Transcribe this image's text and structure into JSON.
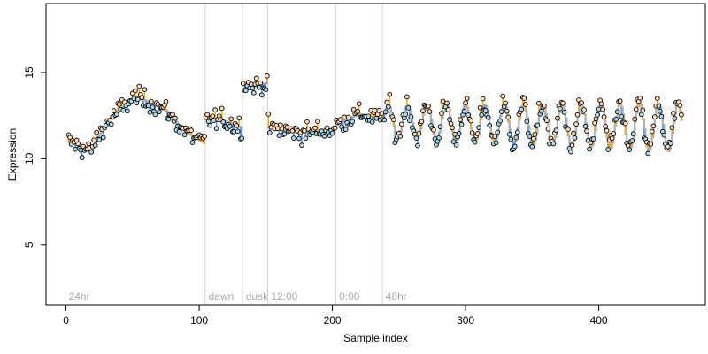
{
  "chart_data": {
    "type": "scatter",
    "title": "",
    "xlabel": "Sample index",
    "ylabel": "Expression",
    "xlim": [
      -15,
      480
    ],
    "ylim": [
      1.5,
      19.0
    ],
    "xticks": [
      0,
      100,
      200,
      300,
      400
    ],
    "yticks": [
      5,
      10,
      15
    ],
    "grid": false,
    "legend": "none",
    "colors": {
      "fitted_line": "#b3b3b3",
      "residual_positive": "#ffa500",
      "residual_negative": "#6495ed",
      "point_fill_positive": "#ffdab9",
      "point_fill_negative": "#add8e6",
      "point_stroke": "#000000",
      "phase_line": "#d3d3d3",
      "phase_label": "#a9a9a9"
    },
    "phase_boundaries": [
      {
        "x": 0,
        "label": "24hr"
      },
      {
        "x": 105,
        "label": "dawn"
      },
      {
        "x": 133,
        "label": "dusk"
      },
      {
        "x": 152,
        "label": "12:00"
      },
      {
        "x": 203,
        "label": "0:00"
      },
      {
        "x": 238,
        "label": "48hr"
      }
    ],
    "segments": [
      {
        "x": [
          2,
          104
        ],
        "pattern": "rise-fall",
        "knots": [
          [
            2,
            11.0
          ],
          [
            10,
            10.7
          ],
          [
            18,
            10.4
          ],
          [
            28,
            11.8
          ],
          [
            40,
            12.8
          ],
          [
            52,
            13.6
          ],
          [
            62,
            13.3
          ],
          [
            75,
            12.8
          ],
          [
            85,
            11.9
          ],
          [
            95,
            11.3
          ],
          [
            104,
            10.9
          ]
        ]
      },
      {
        "x": [
          105,
          132
        ],
        "pattern": "flat",
        "knots": [
          [
            105,
            12.3
          ],
          [
            118,
            12.2
          ],
          [
            132,
            11.8
          ]
        ]
      },
      {
        "x": [
          133,
          151
        ],
        "pattern": "flat",
        "knots": [
          [
            133,
            14.3
          ],
          [
            142,
            14.2
          ],
          [
            151,
            14.4
          ]
        ]
      },
      {
        "x": [
          152,
          202
        ],
        "pattern": "flat",
        "knots": [
          [
            152,
            11.8
          ],
          [
            175,
            11.5
          ],
          [
            202,
            11.7
          ]
        ]
      },
      {
        "x": [
          203,
          237
        ],
        "pattern": "rise",
        "knots": [
          [
            203,
            12.0
          ],
          [
            220,
            12.6
          ],
          [
            237,
            12.3
          ]
        ]
      },
      {
        "x": [
          238,
          462
        ],
        "pattern": "oscillating",
        "mean": 12.2,
        "amp_start": 0.9,
        "amp_end": 1.4,
        "period": 14.5,
        "knots": [
          [
            238,
            12.2
          ],
          [
            462,
            11.8
          ]
        ]
      }
    ],
    "noise_sd": 0.45
  }
}
